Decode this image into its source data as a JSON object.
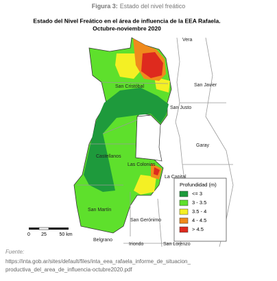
{
  "caption": {
    "label": "Figura 3:",
    "text": "Estado del nivel freático"
  },
  "map": {
    "title": "Estado del Nivel Freático en el área de influencia de la EEA Rafaela.",
    "subtitle": "Octubre-noviembre 2020",
    "places": [
      "Vera",
      "San Cristóbal",
      "San Javier",
      "San Justo",
      "Garay",
      "Castellanos",
      "Las Colonias",
      "La Capital",
      "San Martín",
      "San Gerónimo",
      "Belgrano",
      "Iriondo",
      "San Lorenzo"
    ],
    "scale": [
      "0",
      "25",
      "50 km"
    ],
    "legend": {
      "title": "Profundidad (m)",
      "items": [
        {
          "label": "<= 3",
          "color": "#1e9a3c"
        },
        {
          "label": "3 - 3.5",
          "color": "#5ee02c"
        },
        {
          "label": "3.5 - 4",
          "color": "#f4f024"
        },
        {
          "label": "4 - 4.5",
          "color": "#f08a1c"
        },
        {
          "label": "> 4.5",
          "color": "#de2a1e"
        }
      ]
    }
  },
  "source": {
    "label": "Fuente:",
    "lines": [
      "https://inta.gob.ar/sites/default/files/inta_eea_rafaela_informe_de_situacion_",
      "productiva_del_area_de_influencia-octubre2020.pdf"
    ]
  }
}
